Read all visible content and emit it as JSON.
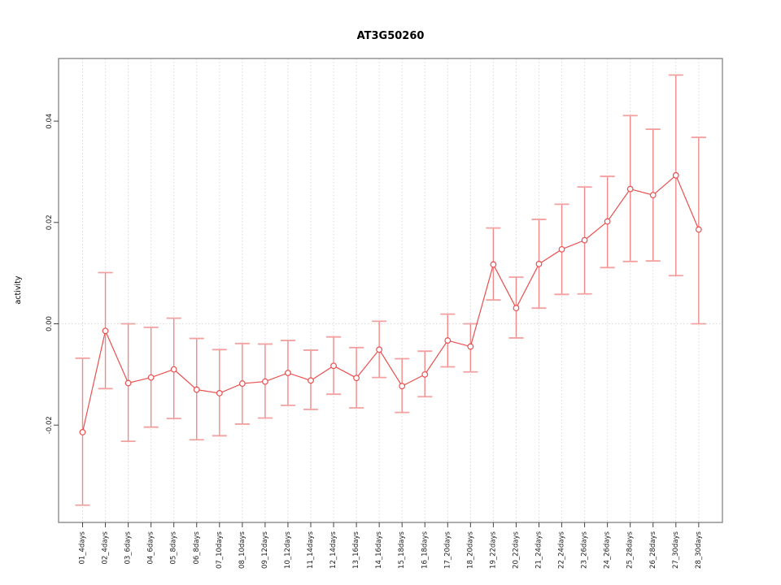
{
  "chart_data": {
    "type": "line",
    "title": "AT3G50260",
    "xlabel": "",
    "ylabel": "activity",
    "categories": [
      "01_4days",
      "02_4days",
      "03_6days",
      "04_6days",
      "05_8days",
      "06_8days",
      "07_10days",
      "08_10days",
      "09_12days",
      "10_12days",
      "11_14days",
      "12_14days",
      "13_16days",
      "14_16days",
      "15_18days",
      "16_18days",
      "17_20days",
      "18_20days",
      "19_22days",
      "20_22days",
      "21_24days",
      "22_24days",
      "23_26days",
      "24_26days",
      "25_28days",
      "26_28days",
      "27_30days",
      "28_30days"
    ],
    "series": [
      {
        "name": "activity",
        "marker": "open-circle",
        "values": [
          -0.0214,
          -0.0014,
          -0.0117,
          -0.0106,
          -0.009,
          -0.013,
          -0.0137,
          -0.0118,
          -0.0114,
          -0.0097,
          -0.0112,
          -0.0083,
          -0.0107,
          -0.0051,
          -0.0123,
          -0.01,
          -0.0033,
          -0.0045,
          0.0117,
          0.0031,
          0.0118,
          0.0147,
          0.0165,
          0.0202,
          0.0266,
          0.0254,
          0.0293,
          0.0186
        ],
        "error_low": [
          -0.0358,
          -0.0128,
          -0.0232,
          -0.0204,
          -0.0187,
          -0.0229,
          -0.0221,
          -0.0198,
          -0.0186,
          -0.0161,
          -0.0169,
          -0.0139,
          -0.0166,
          -0.0106,
          -0.0175,
          -0.0144,
          -0.0085,
          -0.0095,
          0.0047,
          -0.0028,
          0.0031,
          0.0058,
          0.0059,
          0.0111,
          0.0123,
          0.0124,
          0.0095,
          0.0
        ],
        "error_high": [
          -0.0068,
          0.0101,
          0.0,
          -0.0007,
          0.0011,
          -0.0029,
          -0.0051,
          -0.0039,
          -0.004,
          -0.0033,
          -0.0052,
          -0.0026,
          -0.0047,
          0.0005,
          -0.0069,
          -0.0054,
          0.0019,
          0.0,
          0.0189,
          0.0092,
          0.0206,
          0.0236,
          0.027,
          0.0291,
          0.0411,
          0.0384,
          0.0491,
          0.0368
        ]
      }
    ],
    "ylim": [
      -0.0391,
      0.0524
    ],
    "yticks": [
      {
        "value": -0.02,
        "label": "-0.02"
      },
      {
        "value": 0.0,
        "label": "0.00"
      },
      {
        "value": 0.02,
        "label": "0.02"
      },
      {
        "value": 0.04,
        "label": "0.04"
      }
    ],
    "grid": {
      "vertical": "dotted line at every category",
      "horizontal": "dotted line at y = 0.00 only"
    },
    "legend": null,
    "colors": {
      "line": "#e94f4f",
      "marker_stroke": "#e94f4f",
      "marker_fill": "#ffffff",
      "error_bar": "#f08a8a",
      "error_cap": "#f3a0a0",
      "grid": "#dadada",
      "axis_box": "#777777",
      "tick": "#444444",
      "text": "#000000"
    }
  }
}
